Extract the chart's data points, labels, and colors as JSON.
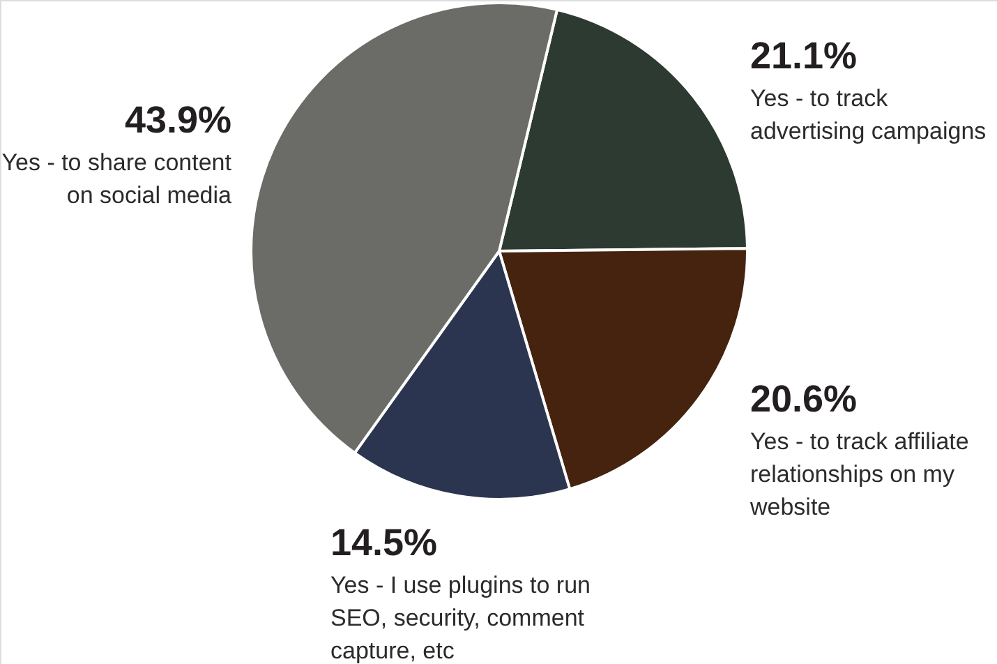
{
  "chart_data": {
    "type": "pie",
    "categories": [
      "Yes - to track advertising campaigns",
      "Yes - to track affiliate relationships on my website",
      "Yes - I use plugins to run SEO, security, comment capture, etc",
      "Yes - to share content on social media"
    ],
    "values": [
      21.1,
      20.6,
      14.5,
      43.9
    ],
    "colors": [
      "#2c3a32",
      "#45230f",
      "#2c3550",
      "#6b6b67"
    ],
    "value_labels": [
      "21.1%",
      "20.6%",
      "14.5%",
      "43.9%"
    ]
  }
}
